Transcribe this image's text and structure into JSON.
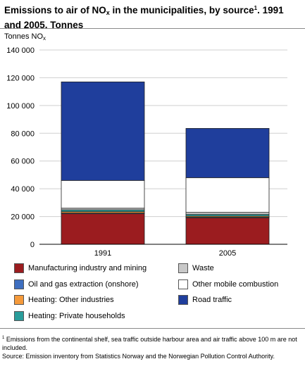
{
  "chart_data": {
    "type": "bar",
    "stacked": true,
    "title_parts": {
      "prefix": "Emissions to air of NO",
      "sub": "x",
      "middle": " in the municipalities, by source",
      "sup": "1",
      "suffix": ". 1991 and 2005. Tonnes"
    },
    "ylabel_parts": {
      "main": "Tonnes NO",
      "sub": "x"
    },
    "categories": [
      "1991",
      "2005"
    ],
    "ylim": [
      0,
      140000
    ],
    "yticks": [
      0,
      20000,
      40000,
      60000,
      80000,
      100000,
      120000,
      140000
    ],
    "ytick_labels": [
      "0",
      "20 000",
      "40 000",
      "60 000",
      "80 000",
      "100 000",
      "120 000",
      "140 000"
    ],
    "grid": true,
    "series": [
      {
        "name": "Manufacturing industry and mining",
        "color": "#9b1c1f",
        "values": [
          22000,
          19000
        ]
      },
      {
        "name": "Oil and gas extraction (onshore)",
        "color": "#3e6fc0",
        "values": [
          500,
          500
        ]
      },
      {
        "name": "Heating: Other industries",
        "color": "#f59a3b",
        "values": [
          1000,
          800
        ]
      },
      {
        "name": "Heating: Private households",
        "color": "#2a9d9b",
        "values": [
          1300,
          1200
        ]
      },
      {
        "name": "Waste",
        "color": "#c8c8c8",
        "values": [
          1200,
          1500
        ]
      },
      {
        "name": "Other mobile combustion",
        "color": "#ffffff",
        "values": [
          20000,
          25000
        ]
      },
      {
        "name": "Road traffic",
        "color": "#1f3e9c",
        "values": [
          71000,
          35500
        ]
      }
    ]
  },
  "footnote": {
    "marker": "1",
    "line1": " Emissions from the continental shelf, sea traffic outside harbour area and air traffic above 100 m are not included.",
    "line2": "Source: Emission inventory from Statistics Norway and the Norwegian Pollution Control Authority."
  }
}
